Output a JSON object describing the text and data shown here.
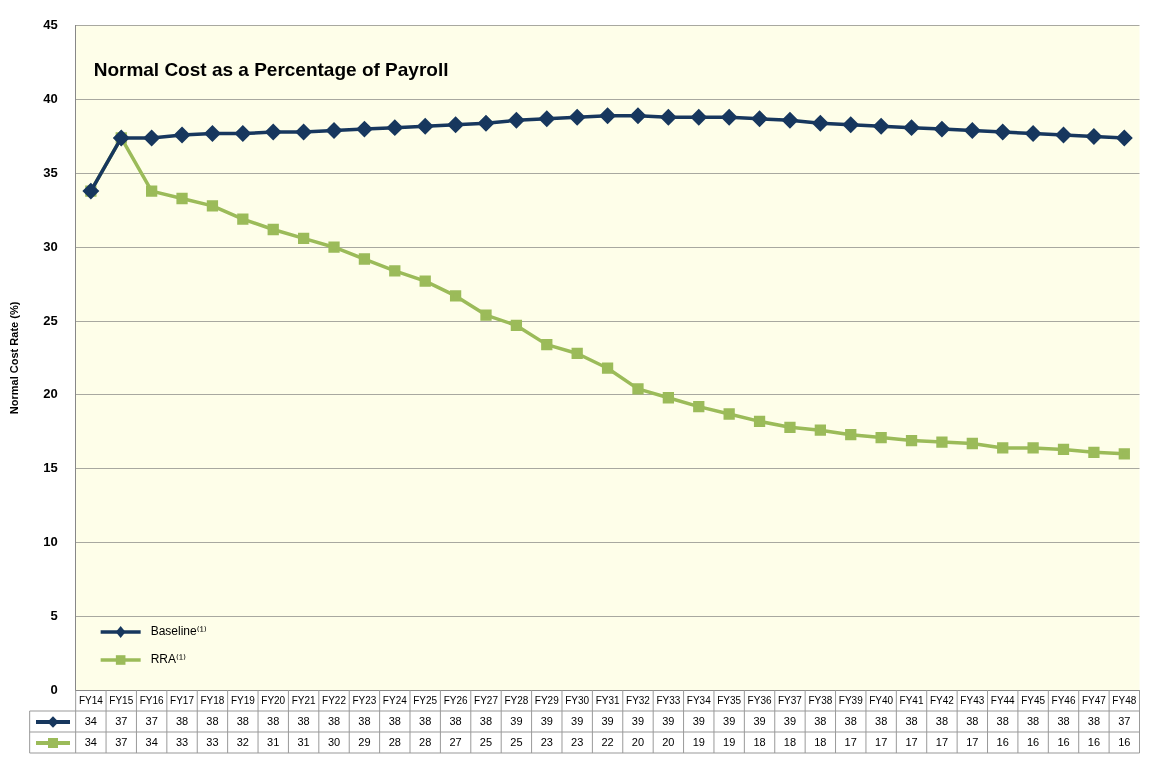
{
  "chart_data": {
    "type": "line",
    "title": "Normal Cost as a Percentage of Payroll",
    "ylabel": "Normal Cost Rate (%)",
    "categories": [
      "FY14",
      "FY15",
      "FY16",
      "FY17",
      "FY18",
      "FY19",
      "FY20",
      "FY21",
      "FY22",
      "FY23",
      "FY24",
      "FY25",
      "FY26",
      "FY27",
      "FY28",
      "FY29",
      "FY30",
      "FY31",
      "FY32",
      "FY33",
      "FY34",
      "FY35",
      "FY36",
      "FY37",
      "FY38",
      "FY39",
      "FY40",
      "FY41",
      "FY42",
      "FY43",
      "FY44",
      "FY45",
      "FY46",
      "FY47",
      "FY48"
    ],
    "series": [
      {
        "name": "Baseline⁽¹⁾",
        "color": "#17375e",
        "marker": "diamond",
        "values": [
          33.8,
          37.4,
          37.4,
          37.6,
          37.7,
          37.7,
          37.8,
          37.8,
          37.9,
          38.0,
          38.1,
          38.2,
          38.3,
          38.4,
          38.6,
          38.7,
          38.8,
          38.9,
          38.9,
          38.8,
          38.8,
          38.8,
          38.7,
          38.6,
          38.4,
          38.3,
          38.2,
          38.1,
          38.0,
          37.9,
          37.8,
          37.7,
          37.6,
          37.5,
          37.4
        ],
        "value_labels": [
          "34",
          "37",
          "37",
          "38",
          "38",
          "38",
          "38",
          "38",
          "38",
          "38",
          "38",
          "38",
          "38",
          "38",
          "39",
          "39",
          "39",
          "39",
          "39",
          "39",
          "39",
          "39",
          "39",
          "39",
          "38",
          "38",
          "38",
          "38",
          "38",
          "38",
          "38",
          "38",
          "38",
          "38",
          "37"
        ]
      },
      {
        "name": "RRA⁽¹⁾",
        "color": "#9bbb59",
        "marker": "square",
        "values": [
          33.8,
          37.4,
          33.8,
          33.3,
          32.8,
          31.9,
          31.2,
          30.6,
          30.0,
          29.2,
          28.4,
          27.7,
          26.7,
          25.4,
          24.7,
          23.4,
          22.8,
          21.8,
          20.4,
          19.8,
          19.2,
          18.7,
          18.2,
          17.8,
          17.6,
          17.3,
          17.1,
          16.9,
          16.8,
          16.7,
          16.4,
          16.4,
          16.3,
          16.1,
          16.0
        ],
        "value_labels": [
          "34",
          "37",
          "34",
          "33",
          "33",
          "32",
          "31",
          "31",
          "30",
          "29",
          "28",
          "28",
          "27",
          "25",
          "25",
          "23",
          "23",
          "22",
          "20",
          "20",
          "19",
          "19",
          "18",
          "18",
          "18",
          "17",
          "17",
          "17",
          "17",
          "17",
          "16",
          "16",
          "16",
          "16",
          "16"
        ]
      }
    ],
    "ylim": [
      0,
      45
    ],
    "yticks": [
      0,
      5,
      10,
      15,
      20,
      25,
      30,
      35,
      40,
      45
    ],
    "grid": "y",
    "legend": "bottom left",
    "line_style": "solid"
  }
}
